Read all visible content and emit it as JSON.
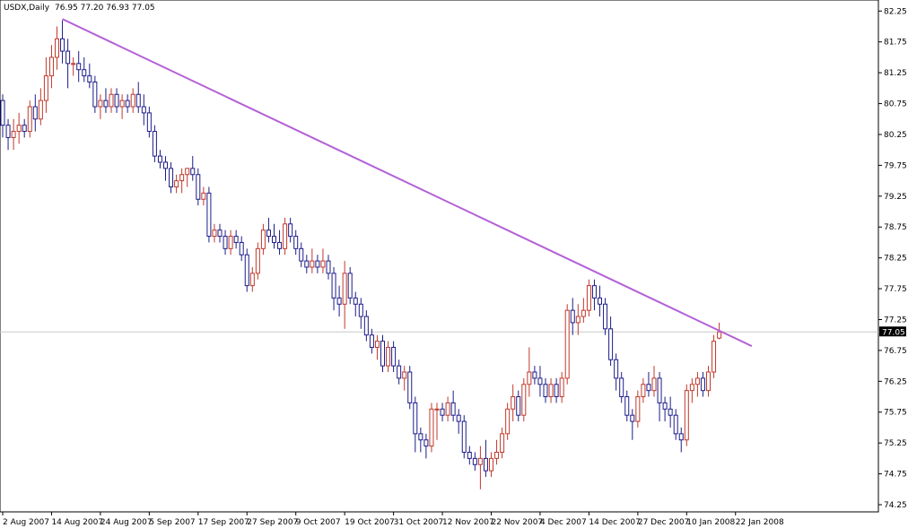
{
  "header": {
    "symbol": "USDX,Daily",
    "ohlc": "76.95 77.20 76.93 77.05"
  },
  "colors": {
    "bull": "#c0392b",
    "bear": "#1c1c8a",
    "trendline": "#b45fd6",
    "grid": "#c8c8c8",
    "current_label_bg": "#000000"
  },
  "chart_data": {
    "type": "candlestick",
    "title": "USDX,Daily",
    "y_ticks": [
      "82.25",
      "81.75",
      "81.25",
      "80.75",
      "80.25",
      "79.75",
      "79.25",
      "78.75",
      "78.25",
      "77.75",
      "77.25",
      "76.75",
      "76.25",
      "75.75",
      "75.25",
      "74.75",
      "74.25"
    ],
    "ylim": [
      74.25,
      82.4
    ],
    "x_labels": [
      "2 Aug 2007",
      "14 Aug 2007",
      "24 Aug 2007",
      "5 Sep 2007",
      "17 Sep 2007",
      "27 Sep 2007",
      "9 Oct 2007",
      "19 Oct 2007",
      "31 Oct 2007",
      "12 Nov 2007",
      "22 Nov 2007",
      "4 Dec 2007",
      "14 Dec 2007",
      "27 Dec 2007",
      "10 Jan 2008",
      "22 Jan 2008"
    ],
    "x_label_index": [
      0,
      9,
      18,
      27,
      36,
      45,
      54,
      63,
      72,
      81,
      90,
      99,
      108,
      117,
      126,
      135
    ],
    "current_price": "77.05",
    "current_price_value": 77.05,
    "trendline": {
      "from_index": 11,
      "from_value": 82.12,
      "to_index": 138,
      "to_value": 76.82
    },
    "candles": [
      [
        80.8,
        80.9,
        80.2,
        80.4
      ],
      [
        80.4,
        80.5,
        80.0,
        80.2
      ],
      [
        80.2,
        80.5,
        80.0,
        80.3
      ],
      [
        80.3,
        80.6,
        80.1,
        80.4
      ],
      [
        80.4,
        80.5,
        80.2,
        80.3
      ],
      [
        80.3,
        80.8,
        80.2,
        80.7
      ],
      [
        80.7,
        80.9,
        80.3,
        80.5
      ],
      [
        80.5,
        81.0,
        80.4,
        80.8
      ],
      [
        80.8,
        81.5,
        80.6,
        81.2
      ],
      [
        81.2,
        81.7,
        81.0,
        81.5
      ],
      [
        81.5,
        82.0,
        81.3,
        81.8
      ],
      [
        81.8,
        82.1,
        81.4,
        81.6
      ],
      [
        81.6,
        81.8,
        81.0,
        81.4
      ],
      [
        81.4,
        81.5,
        81.2,
        81.4
      ],
      [
        81.4,
        81.6,
        81.1,
        81.3
      ],
      [
        81.3,
        81.5,
        81.1,
        81.2
      ],
      [
        81.2,
        81.4,
        81.0,
        81.1
      ],
      [
        81.1,
        81.2,
        80.6,
        80.7
      ],
      [
        80.7,
        80.9,
        80.5,
        80.8
      ],
      [
        80.8,
        81.0,
        80.6,
        80.7
      ],
      [
        80.7,
        81.0,
        80.6,
        80.9
      ],
      [
        80.9,
        81.0,
        80.6,
        80.7
      ],
      [
        80.7,
        80.9,
        80.5,
        80.8
      ],
      [
        80.8,
        80.9,
        80.6,
        80.7
      ],
      [
        80.7,
        81.0,
        80.6,
        80.9
      ],
      [
        80.9,
        81.1,
        80.6,
        80.7
      ],
      [
        80.7,
        80.9,
        80.4,
        80.6
      ],
      [
        80.6,
        80.7,
        80.2,
        80.3
      ],
      [
        80.3,
        80.4,
        79.8,
        79.9
      ],
      [
        79.9,
        80.0,
        79.7,
        79.8
      ],
      [
        79.8,
        79.9,
        79.5,
        79.7
      ],
      [
        79.7,
        79.8,
        79.3,
        79.4
      ],
      [
        79.4,
        79.6,
        79.3,
        79.5
      ],
      [
        79.5,
        79.7,
        79.3,
        79.6
      ],
      [
        79.6,
        79.7,
        79.4,
        79.7
      ],
      [
        79.7,
        79.9,
        79.5,
        79.6
      ],
      [
        79.6,
        79.7,
        79.1,
        79.2
      ],
      [
        79.2,
        79.4,
        79.1,
        79.3
      ],
      [
        79.3,
        79.4,
        78.5,
        78.6
      ],
      [
        78.6,
        78.8,
        78.5,
        78.7
      ],
      [
        78.7,
        78.8,
        78.5,
        78.6
      ],
      [
        78.6,
        78.7,
        78.3,
        78.4
      ],
      [
        78.4,
        78.7,
        78.3,
        78.6
      ],
      [
        78.6,
        78.7,
        78.4,
        78.5
      ],
      [
        78.5,
        78.6,
        78.2,
        78.3
      ],
      [
        78.3,
        78.4,
        77.7,
        77.8
      ],
      [
        77.8,
        78.1,
        77.7,
        78.0
      ],
      [
        78.0,
        78.5,
        77.9,
        78.4
      ],
      [
        78.4,
        78.8,
        78.3,
        78.7
      ],
      [
        78.7,
        78.9,
        78.5,
        78.6
      ],
      [
        78.6,
        78.8,
        78.4,
        78.5
      ],
      [
        78.5,
        78.7,
        78.3,
        78.4
      ],
      [
        78.4,
        78.9,
        78.3,
        78.8
      ],
      [
        78.8,
        78.9,
        78.5,
        78.6
      ],
      [
        78.6,
        78.7,
        78.3,
        78.4
      ],
      [
        78.4,
        78.5,
        78.1,
        78.2
      ],
      [
        78.2,
        78.3,
        78.0,
        78.1
      ],
      [
        78.1,
        78.4,
        78.0,
        78.2
      ],
      [
        78.2,
        78.3,
        78.0,
        78.1
      ],
      [
        78.1,
        78.4,
        78.0,
        78.2
      ],
      [
        78.2,
        78.3,
        77.9,
        78.0
      ],
      [
        78.0,
        78.1,
        77.4,
        77.6
      ],
      [
        77.6,
        77.8,
        77.3,
        77.5
      ],
      [
        77.5,
        78.2,
        77.1,
        78.0
      ],
      [
        78.0,
        78.1,
        77.5,
        77.6
      ],
      [
        77.6,
        77.7,
        77.3,
        77.5
      ],
      [
        77.5,
        77.6,
        77.1,
        77.3
      ],
      [
        77.3,
        77.4,
        76.9,
        77.0
      ],
      [
        77.0,
        77.1,
        76.7,
        76.8
      ],
      [
        76.8,
        77.0,
        76.6,
        76.9
      ],
      [
        76.9,
        77.0,
        76.4,
        76.5
      ],
      [
        76.5,
        76.9,
        76.4,
        76.8
      ],
      [
        76.8,
        76.9,
        76.4,
        76.5
      ],
      [
        76.5,
        76.6,
        76.2,
        76.3
      ],
      [
        76.3,
        76.5,
        76.1,
        76.4
      ],
      [
        76.4,
        76.5,
        75.8,
        75.9
      ],
      [
        75.9,
        76.0,
        75.1,
        75.4
      ],
      [
        75.4,
        75.5,
        75.1,
        75.3
      ],
      [
        75.3,
        75.4,
        75.0,
        75.2
      ],
      [
        75.2,
        75.9,
        75.1,
        75.8
      ],
      [
        75.8,
        75.9,
        75.3,
        75.8
      ],
      [
        75.8,
        75.9,
        75.6,
        75.7
      ],
      [
        75.7,
        76.0,
        75.6,
        75.9
      ],
      [
        75.9,
        76.1,
        75.6,
        75.7
      ],
      [
        75.7,
        75.8,
        75.4,
        75.6
      ],
      [
        75.6,
        75.7,
        75.0,
        75.1
      ],
      [
        75.1,
        75.2,
        74.9,
        75.0
      ],
      [
        75.0,
        75.1,
        74.8,
        74.9
      ],
      [
        74.9,
        75.2,
        74.5,
        75.0
      ],
      [
        75.0,
        75.3,
        74.7,
        74.8
      ],
      [
        74.8,
        75.1,
        74.7,
        75.0
      ],
      [
        75.0,
        75.3,
        74.9,
        75.1
      ],
      [
        75.1,
        75.5,
        75.0,
        75.4
      ],
      [
        75.4,
        75.9,
        75.3,
        75.8
      ],
      [
        75.8,
        76.2,
        75.6,
        76.0
      ],
      [
        76.0,
        76.1,
        75.6,
        75.7
      ],
      [
        75.7,
        76.3,
        75.6,
        76.2
      ],
      [
        76.2,
        76.8,
        76.0,
        76.4
      ],
      [
        76.4,
        76.5,
        76.2,
        76.3
      ],
      [
        76.3,
        76.5,
        76.0,
        76.2
      ],
      [
        76.2,
        76.3,
        75.9,
        76.0
      ],
      [
        76.0,
        76.3,
        75.9,
        76.2
      ],
      [
        76.2,
        76.3,
        75.9,
        76.0
      ],
      [
        76.0,
        76.4,
        75.9,
        76.3
      ],
      [
        76.3,
        77.5,
        76.2,
        77.4
      ],
      [
        77.4,
        77.6,
        77.0,
        77.2
      ],
      [
        77.2,
        77.5,
        77.0,
        77.3
      ],
      [
        77.3,
        77.6,
        77.2,
        77.4
      ],
      [
        77.4,
        77.9,
        77.3,
        77.8
      ],
      [
        77.8,
        77.9,
        77.4,
        77.6
      ],
      [
        77.6,
        77.8,
        77.3,
        77.5
      ],
      [
        77.5,
        77.6,
        77.0,
        77.1
      ],
      [
        77.1,
        77.3,
        76.5,
        76.6
      ],
      [
        76.6,
        76.7,
        76.1,
        76.3
      ],
      [
        76.3,
        76.4,
        75.9,
        76.0
      ],
      [
        76.0,
        76.1,
        75.6,
        75.7
      ],
      [
        75.7,
        75.8,
        75.3,
        75.6
      ],
      [
        75.6,
        76.1,
        75.5,
        76.0
      ],
      [
        76.0,
        76.3,
        75.9,
        76.2
      ],
      [
        76.2,
        76.4,
        76.0,
        76.1
      ],
      [
        76.1,
        76.5,
        76.0,
        76.3
      ],
      [
        76.3,
        76.4,
        75.6,
        75.9
      ],
      [
        75.9,
        76.0,
        75.6,
        75.8
      ],
      [
        75.8,
        76.0,
        75.5,
        75.7
      ],
      [
        75.7,
        75.8,
        75.3,
        75.4
      ],
      [
        75.4,
        75.5,
        75.1,
        75.3
      ],
      [
        75.3,
        76.2,
        75.2,
        76.1
      ],
      [
        76.1,
        76.3,
        75.9,
        76.2
      ],
      [
        76.2,
        76.4,
        76.0,
        76.3
      ],
      [
        76.3,
        76.4,
        76.0,
        76.1
      ],
      [
        76.1,
        76.5,
        76.0,
        76.4
      ],
      [
        76.4,
        77.0,
        76.3,
        76.9
      ],
      [
        76.95,
        77.2,
        76.93,
        77.05
      ]
    ]
  }
}
